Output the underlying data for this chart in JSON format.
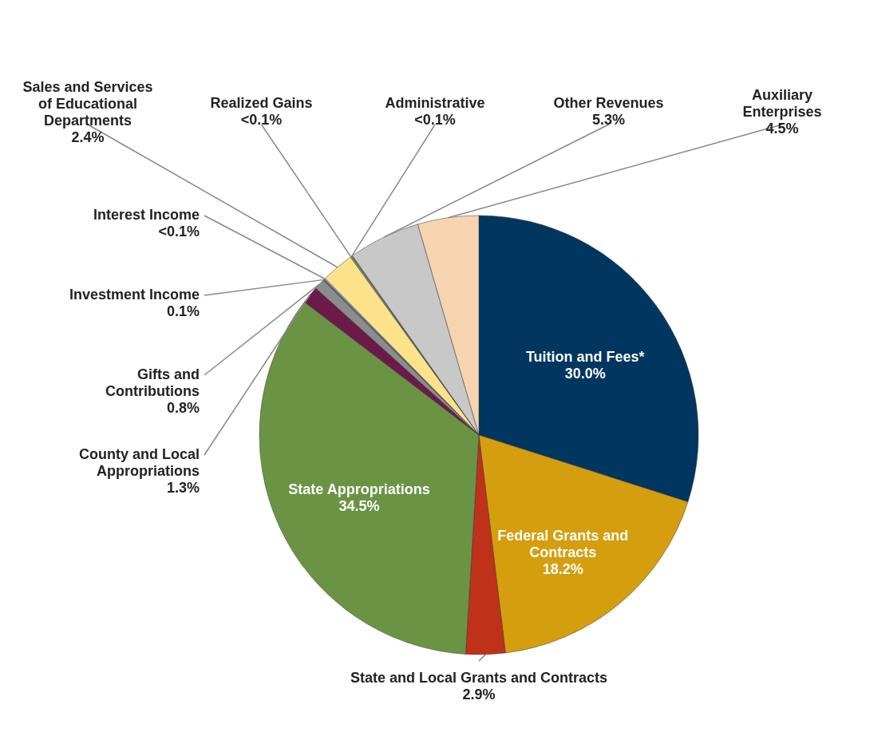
{
  "chart_data": {
    "type": "pie",
    "categories": [
      "Tuition and Fees*",
      "Federal Grants and Contracts",
      "State and Local Grants and Contracts",
      "State Appropriations",
      "County and Local Appropriations",
      "Gifts and Contributions",
      "Investment Income",
      "Interest Income",
      "Sales and Services of Educational Departments",
      "Realized Gains",
      "Administrative",
      "Other Revenues",
      "Auxiliary Enterprises"
    ],
    "values": [
      30.0,
      18.2,
      2.9,
      34.5,
      1.3,
      0.8,
      0.1,
      0.09,
      2.4,
      0.09,
      0.09,
      5.3,
      4.5
    ],
    "value_labels": [
      "30.0%",
      "18.2%",
      "2.9%",
      "34.5%",
      "1.3%",
      "0.8%",
      "0.1%",
      "<0.1%",
      "2.4%",
      "<0.1%",
      "<0.1%",
      "5.3%",
      "4.5%"
    ],
    "colors": [
      "#00365f",
      "#d49e0e",
      "#c0311a",
      "#6a9444",
      "#6b1a4a",
      "#8c8c8c",
      "#4f6f9f",
      "#b0b0b0",
      "#fde28c",
      "#9bbb59",
      "#7f7f7f",
      "#c8c8c8",
      "#f7d4b0"
    ]
  }
}
